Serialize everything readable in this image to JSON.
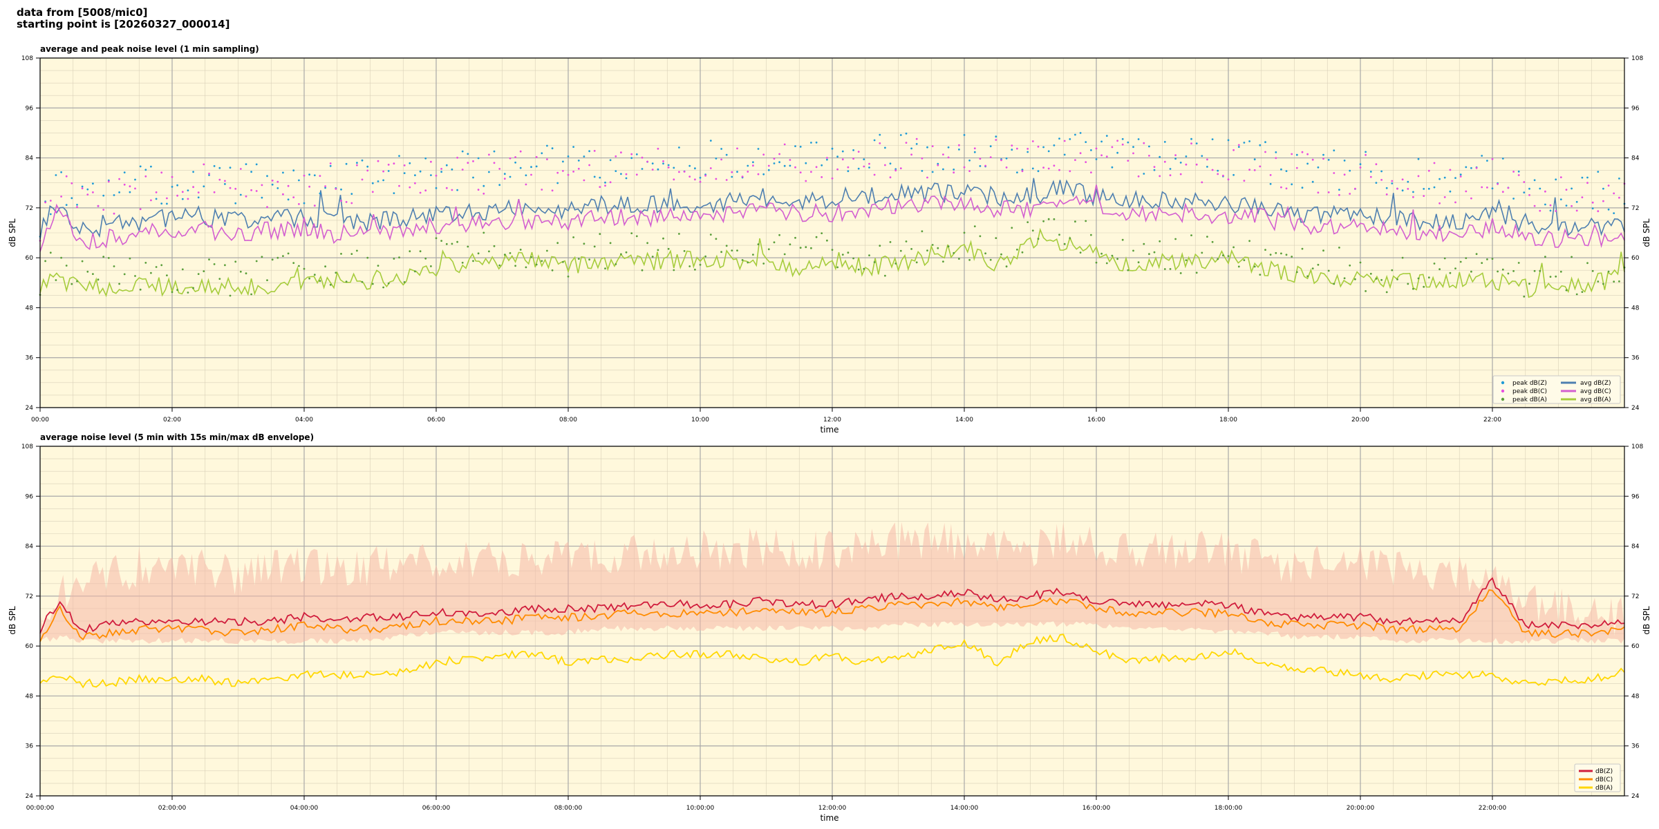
{
  "header": {
    "line1": "data from [5008/mic0]",
    "line2": "starting point is [20260327_000014]"
  },
  "colors": {
    "plot_background": "#fff8dc",
    "peak_z": "#1f9bd6",
    "peak_c": "#e84de0",
    "peak_a": "#5a9e3a",
    "avg_z": "#4e7fb0",
    "avg_c": "#d35fd0",
    "avg_a": "#a6cc3c",
    "db_z": "#d01c3c",
    "db_c": "#ff8c00",
    "db_a": "#ffd700",
    "envelope": "#f5b8a8"
  },
  "chart_data": [
    {
      "type": "line",
      "title": "average and peak noise level (1 min sampling)",
      "xlabel": "time",
      "ylabel": "dB SPL",
      "ylim": [
        24,
        108
      ],
      "yticks": [
        "24",
        "36",
        "48",
        "60",
        "72",
        "84",
        "96",
        "108"
      ],
      "xlim_hours": [
        0,
        24
      ],
      "xticks": [
        "00:00",
        "02:00",
        "04:00",
        "06:00",
        "08:00",
        "10:00",
        "12:00",
        "14:00",
        "16:00",
        "18:00",
        "20:00",
        "22:00"
      ],
      "grid": true,
      "legend_position": "lower-right",
      "legend": [
        "peak dB(Z)",
        "peak dB(C)",
        "peak dB(A)",
        "avg dB(Z)",
        "avg dB(C)",
        "avg dB(A)"
      ],
      "x_hours": [
        0,
        0.3,
        0.6,
        1.0,
        1.5,
        2.0,
        2.5,
        3.0,
        3.5,
        4.0,
        4.5,
        5.0,
        5.5,
        6.0,
        6.5,
        7.0,
        7.5,
        8.0,
        8.5,
        9.0,
        9.5,
        10.0,
        10.5,
        11.0,
        11.5,
        12.0,
        12.5,
        13.0,
        13.5,
        14.0,
        14.5,
        15.0,
        15.5,
        16.0,
        16.5,
        17.0,
        17.5,
        18.0,
        18.5,
        19.0,
        19.5,
        20.0,
        20.5,
        21.0,
        21.5,
        22.0,
        22.5,
        23.0,
        23.5,
        24.0
      ],
      "series": [
        {
          "name": "avg dB(Z)",
          "style": "line",
          "values": [
            66,
            73,
            66,
            67,
            68,
            69,
            69,
            68,
            69,
            69,
            68,
            68,
            69,
            70,
            70,
            71,
            71,
            71,
            72,
            72,
            72,
            72,
            73,
            74,
            73,
            73,
            74,
            75,
            75,
            75,
            74,
            74,
            76,
            74,
            73,
            73,
            73,
            72,
            72,
            70,
            70,
            70,
            69,
            68,
            68,
            70,
            67,
            67,
            67,
            67
          ]
        },
        {
          "name": "avg dB(C)",
          "style": "line",
          "values": [
            63,
            70,
            63,
            64,
            65,
            66,
            66,
            65,
            66,
            66,
            65,
            65,
            66,
            67,
            67,
            68,
            68,
            68,
            69,
            69,
            69,
            69,
            70,
            71,
            70,
            70,
            71,
            72,
            72,
            72,
            71,
            71,
            73,
            71,
            70,
            70,
            70,
            69,
            69,
            67,
            67,
            67,
            66,
            65,
            65,
            67,
            64,
            64,
            64,
            64
          ]
        },
        {
          "name": "avg dB(A)",
          "style": "line",
          "values": [
            53,
            54,
            52,
            52,
            53,
            52,
            53,
            52,
            53,
            54,
            54,
            54,
            55,
            57,
            58,
            59,
            59,
            57,
            58,
            58,
            59,
            59,
            59,
            58,
            57,
            59,
            57,
            58,
            60,
            62,
            57,
            62,
            63,
            60,
            57,
            58,
            58,
            60,
            57,
            55,
            55,
            54,
            53,
            54,
            54,
            54,
            52,
            53,
            53,
            55
          ]
        },
        {
          "name": "peak dB(Z)",
          "style": "points",
          "values": [
            70,
            78,
            74,
            76,
            77,
            78,
            79,
            78,
            78,
            78,
            79,
            79,
            80,
            80,
            81,
            81,
            82,
            82,
            82,
            83,
            83,
            83,
            84,
            84,
            84,
            84,
            85,
            85,
            85,
            85,
            85,
            85,
            86,
            85,
            84,
            84,
            84,
            84,
            83,
            82,
            81,
            81,
            80,
            79,
            79,
            80,
            77,
            76,
            76,
            75
          ]
        },
        {
          "name": "peak dB(C)",
          "style": "points",
          "values": [
            69,
            77,
            73,
            75,
            76,
            77,
            78,
            77,
            77,
            77,
            78,
            78,
            79,
            79,
            80,
            80,
            81,
            81,
            81,
            82,
            82,
            82,
            83,
            83,
            83,
            83,
            84,
            84,
            84,
            84,
            84,
            84,
            85,
            84,
            83,
            83,
            83,
            83,
            82,
            81,
            80,
            80,
            79,
            78,
            78,
            79,
            76,
            75,
            75,
            74
          ]
        },
        {
          "name": "peak dB(A)",
          "style": "points",
          "values": [
            56,
            57,
            55,
            56,
            56,
            56,
            56,
            55,
            56,
            57,
            57,
            57,
            58,
            60,
            61,
            62,
            62,
            60,
            61,
            61,
            62,
            62,
            62,
            61,
            60,
            62,
            60,
            61,
            63,
            65,
            60,
            65,
            66,
            63,
            60,
            61,
            61,
            63,
            60,
            58,
            58,
            57,
            56,
            57,
            57,
            57,
            55,
            56,
            56,
            58
          ]
        }
      ]
    },
    {
      "type": "line",
      "title": "average noise level (5 min with 15s min/max dB envelope)",
      "xlabel": "time",
      "ylabel": "dB SPL",
      "ylim": [
        24,
        108
      ],
      "yticks": [
        "24",
        "36",
        "48",
        "60",
        "72",
        "84",
        "96",
        "108"
      ],
      "xlim_hours": [
        0,
        24
      ],
      "xticks": [
        "00:00:00",
        "02:00:00",
        "04:00:00",
        "06:00:00",
        "08:00:00",
        "10:00:00",
        "12:00:00",
        "14:00:00",
        "16:00:00",
        "18:00:00",
        "20:00:00",
        "22:00:00"
      ],
      "grid": true,
      "legend_position": "lower-right",
      "legend": [
        "dB(Z)",
        "dB(C)",
        "dB(A)"
      ],
      "x_hours": [
        0,
        0.3,
        0.6,
        1.0,
        1.5,
        2.0,
        2.5,
        3.0,
        3.5,
        4.0,
        4.5,
        5.0,
        5.5,
        6.0,
        6.5,
        7.0,
        7.5,
        8.0,
        8.5,
        9.0,
        9.5,
        10.0,
        10.5,
        11.0,
        11.5,
        12.0,
        12.5,
        13.0,
        13.5,
        14.0,
        14.5,
        15.0,
        15.5,
        16.0,
        16.5,
        17.0,
        17.5,
        18.0,
        18.5,
        19.0,
        19.5,
        20.0,
        20.5,
        21.0,
        21.5,
        22.0,
        22.5,
        23.0,
        23.5,
        24.0
      ],
      "series": [
        {
          "name": "dB(Z)",
          "values": [
            64,
            71,
            64,
            65,
            66,
            66,
            66,
            66,
            66,
            67,
            66,
            67,
            67,
            68,
            68,
            68,
            69,
            69,
            69,
            70,
            70,
            70,
            70,
            71,
            70,
            70,
            71,
            72,
            72,
            73,
            71,
            72,
            73,
            71,
            70,
            70,
            70,
            70,
            68,
            67,
            67,
            67,
            66,
            66,
            66,
            76,
            65,
            65,
            65,
            66
          ]
        },
        {
          "name": "dB(C)",
          "values": [
            62,
            69,
            62,
            63,
            64,
            64,
            64,
            63,
            64,
            65,
            64,
            64,
            65,
            66,
            66,
            66,
            67,
            67,
            67,
            68,
            68,
            68,
            68,
            69,
            68,
            68,
            69,
            70,
            70,
            71,
            69,
            70,
            71,
            69,
            68,
            68,
            68,
            68,
            66,
            65,
            65,
            65,
            64,
            64,
            64,
            74,
            63,
            63,
            63,
            64
          ]
        },
        {
          "name": "dB(A)",
          "values": [
            52,
            53,
            51,
            51,
            52,
            52,
            52,
            51,
            52,
            53,
            53,
            53,
            54,
            56,
            57,
            58,
            58,
            56,
            57,
            57,
            58,
            58,
            58,
            57,
            56,
            58,
            56,
            57,
            59,
            61,
            56,
            61,
            62,
            59,
            56,
            57,
            57,
            59,
            56,
            54,
            54,
            53,
            52,
            53,
            53,
            53,
            51,
            52,
            52,
            54
          ]
        },
        {
          "name": "envelope max",
          "values": [
            68,
            78,
            78,
            82,
            84,
            84,
            84,
            82,
            84,
            85,
            84,
            84,
            85,
            86,
            86,
            86,
            87,
            87,
            87,
            88,
            88,
            88,
            88,
            89,
            88,
            88,
            89,
            90,
            90,
            90,
            89,
            89,
            90,
            89,
            88,
            88,
            88,
            88,
            86,
            85,
            85,
            85,
            84,
            83,
            83,
            80,
            76,
            74,
            73,
            72
          ]
        },
        {
          "name": "envelope min",
          "values": [
            62,
            63,
            62,
            62,
            62,
            62,
            62,
            62,
            62,
            62,
            62,
            62,
            63,
            64,
            64,
            64,
            64,
            64,
            65,
            65,
            65,
            65,
            65,
            65,
            65,
            65,
            65,
            66,
            66,
            66,
            66,
            66,
            66,
            66,
            65,
            65,
            65,
            64,
            64,
            63,
            63,
            63,
            62,
            62,
            62,
            62,
            62,
            62,
            62,
            62
          ]
        }
      ]
    }
  ]
}
